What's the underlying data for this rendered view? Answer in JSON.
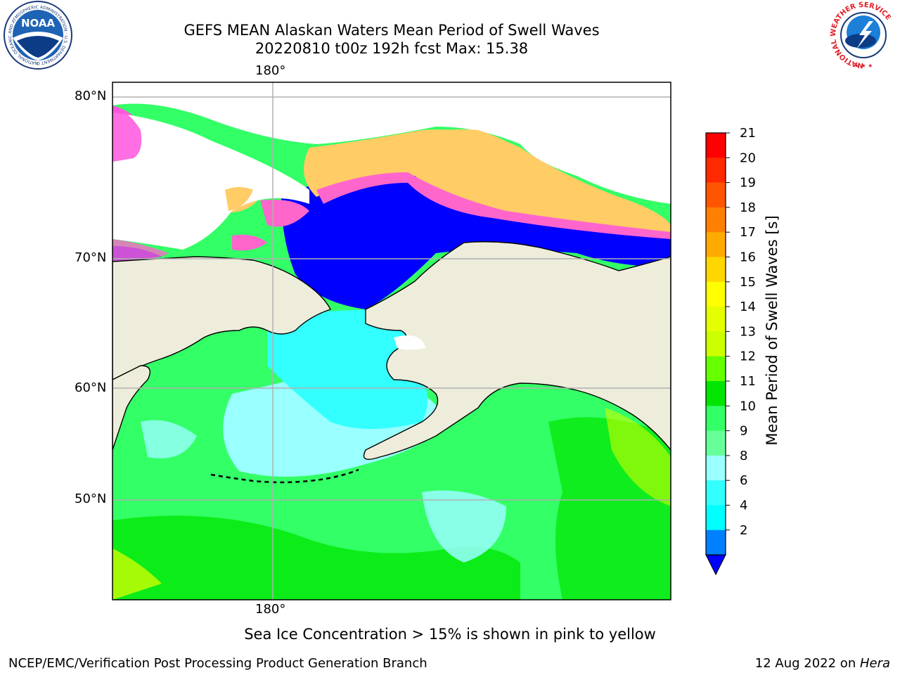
{
  "header": {
    "title_line1": "GEFS MEAN Alaskan Waters Mean Period of Swell Waves",
    "title_line2": "20220810 t00z 192h fcst   Max: 15.38"
  },
  "logos": {
    "noaa_text": "NOAA",
    "noaa_ring": "NATIONAL OCEANIC AND ATMOSPHERIC ADMINISTRATION · U.S. DEPARTMENT OF COMMERCE",
    "nws_ring": "NATIONAL WEATHER SERVICE"
  },
  "map": {
    "lon_label_top": "180°",
    "lon_label_bottom": "180°",
    "lat_labels": [
      "80°N",
      "70°N",
      "60°N",
      "50°N"
    ],
    "colors": {
      "land": "#eeeddc",
      "ice_ocean": "#ffffff",
      "grid": "#b0b0b0"
    }
  },
  "colorbar": {
    "label": "Mean Period of Swell Waves [s]",
    "ticks": [
      "21",
      "20",
      "19",
      "18",
      "17",
      "16",
      "15",
      "14",
      "13",
      "12",
      "11",
      "10",
      "9",
      "8",
      "6",
      "4",
      "2"
    ],
    "colors": [
      "#ff0000",
      "#ff2a00",
      "#ff5500",
      "#ff8000",
      "#ffaa00",
      "#ffd700",
      "#ffff00",
      "#e6ff00",
      "#ccff00",
      "#66ff00",
      "#00e600",
      "#33ff66",
      "#66ff99",
      "#99ffff",
      "#33ffff",
      "#00ffff",
      "#0080ff"
    ],
    "under_color": "#0000ff"
  },
  "notes": {
    "ice_note": "Sea Ice Concentration > 15% is shown in pink to yellow"
  },
  "footer": {
    "left": "NCEP/EMC/Verification Post Processing Product Generation Branch",
    "date": "12 Aug 2022 on ",
    "machine": "Hera"
  }
}
